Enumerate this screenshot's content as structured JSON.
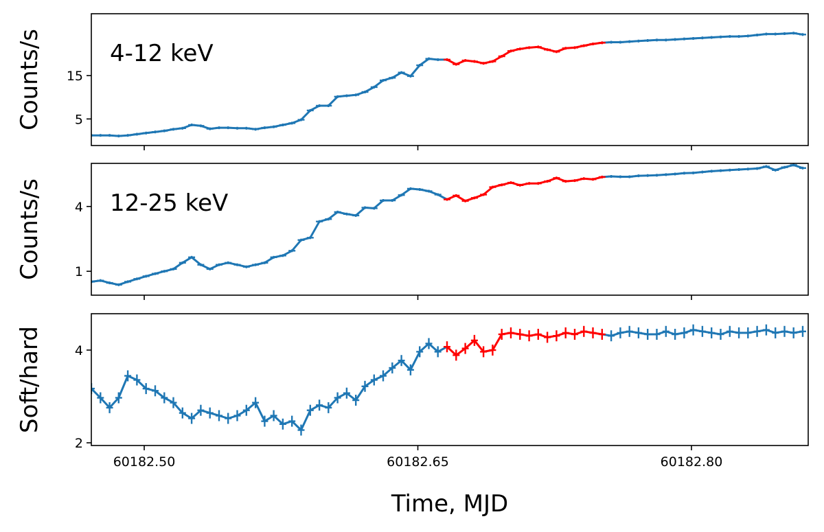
{
  "chart_data": {
    "type": "line",
    "colors": {
      "normal": "#1f77b4",
      "highlight": "#ff0000"
    },
    "highlight_range": [
      60182.665,
      60182.755
    ],
    "x_axis": {
      "label": "Time, MJD",
      "range": [
        60182.471,
        60182.864
      ],
      "ticks": [
        60182.5,
        60182.65,
        60182.8
      ],
      "tick_labels": [
        "60182.50",
        "60182.65",
        "60182.80"
      ]
    },
    "x": [
      60182.471,
      60182.476,
      60182.481,
      60182.486,
      60182.491,
      60182.496,
      60182.501,
      60182.506,
      60182.511,
      60182.516,
      60182.521,
      60182.526,
      60182.531,
      60182.536,
      60182.541,
      60182.546,
      60182.551,
      60182.556,
      60182.561,
      60182.566,
      60182.571,
      60182.576,
      60182.581,
      60182.586,
      60182.591,
      60182.596,
      60182.601,
      60182.606,
      60182.611,
      60182.616,
      60182.621,
      60182.626,
      60182.631,
      60182.636,
      60182.641,
      60182.646,
      60182.651,
      60182.656,
      60182.661,
      60182.666,
      60182.671,
      60182.676,
      60182.681,
      60182.686,
      60182.691,
      60182.696,
      60182.701,
      60182.706,
      60182.711,
      60182.716,
      60182.721,
      60182.726,
      60182.731,
      60182.736,
      60182.741,
      60182.746,
      60182.751,
      60182.756,
      60182.761,
      60182.766,
      60182.771,
      60182.776,
      60182.781,
      60182.786,
      60182.791,
      60182.796,
      60182.801,
      60182.806,
      60182.811,
      60182.816,
      60182.821,
      60182.826,
      60182.831,
      60182.836,
      60182.841,
      60182.846,
      60182.851,
      60182.856,
      60182.861
    ],
    "panels": [
      {
        "id": "soft",
        "label": "4-12 keV",
        "ylabel": "Counts/s",
        "yscale": "log",
        "ylim": [
          2.55,
          72
        ],
        "yticks": [
          5,
          15
        ],
        "ytick_labels": [
          "5",
          "15"
        ],
        "values": [
          3.3,
          3.3,
          3.3,
          3.25,
          3.3,
          3.4,
          3.5,
          3.6,
          3.7,
          3.85,
          3.95,
          4.3,
          4.2,
          3.9,
          4.0,
          4.0,
          3.95,
          3.95,
          3.85,
          4.0,
          4.1,
          4.3,
          4.5,
          4.9,
          6.2,
          7.0,
          7.0,
          8.8,
          9.0,
          9.2,
          9.9,
          11.2,
          13.3,
          14.2,
          16.2,
          14.8,
          19.5,
          23.0,
          22.5,
          22.5,
          20.0,
          22.0,
          21.5,
          20.5,
          21.5,
          24.5,
          28.0,
          29.5,
          30.5,
          31.0,
          29.0,
          27.5,
          30.0,
          30.5,
          32.0,
          33.5,
          34.5,
          35.0,
          35.0,
          35.5,
          36.0,
          36.5,
          37.0,
          37.0,
          37.5,
          38.0,
          38.5,
          39.0,
          39.5,
          40.0,
          40.5,
          40.5,
          41.0,
          42.0,
          43.0,
          43.0,
          43.5,
          44.0,
          42.5
        ]
      },
      {
        "id": "hard",
        "label": "12-25 keV",
        "ylabel": "Counts/s",
        "yscale": "log",
        "ylim": [
          0.6,
          10.05
        ],
        "yticks": [
          1,
          4
        ],
        "ytick_labels": [
          "1",
          "4"
        ],
        "values": [
          0.8,
          0.82,
          0.78,
          0.75,
          0.8,
          0.85,
          0.9,
          0.95,
          1.0,
          1.05,
          1.2,
          1.35,
          1.15,
          1.05,
          1.15,
          1.2,
          1.15,
          1.1,
          1.15,
          1.2,
          1.35,
          1.4,
          1.55,
          1.95,
          2.05,
          2.9,
          3.05,
          3.55,
          3.4,
          3.3,
          3.9,
          3.85,
          4.55,
          4.55,
          5.1,
          5.85,
          5.75,
          5.55,
          5.15,
          4.65,
          5.05,
          4.5,
          4.8,
          5.15,
          6.05,
          6.35,
          6.65,
          6.3,
          6.55,
          6.55,
          6.85,
          7.35,
          6.85,
          6.95,
          7.25,
          7.15,
          7.5,
          7.6,
          7.55,
          7.55,
          7.7,
          7.75,
          7.8,
          7.9,
          8.0,
          8.15,
          8.2,
          8.35,
          8.5,
          8.6,
          8.7,
          8.8,
          8.9,
          9.0,
          9.4,
          8.7,
          9.25,
          9.7,
          9.1
        ]
      },
      {
        "id": "ratio",
        "label": "",
        "ylabel": "Soft/hard",
        "yscale": "log",
        "ylim": [
          1.96,
          5.25
        ],
        "yticks": [
          2,
          4
        ],
        "ytick_labels": [
          "2",
          "4"
        ],
        "values": [
          3.0,
          2.8,
          2.6,
          2.8,
          3.3,
          3.2,
          3.0,
          2.95,
          2.8,
          2.7,
          2.5,
          2.4,
          2.55,
          2.5,
          2.45,
          2.4,
          2.45,
          2.55,
          2.7,
          2.35,
          2.45,
          2.3,
          2.35,
          2.2,
          2.55,
          2.65,
          2.6,
          2.8,
          2.9,
          2.75,
          3.05,
          3.2,
          3.3,
          3.5,
          3.7,
          3.45,
          3.95,
          4.2,
          3.95,
          4.1,
          3.85,
          4.05,
          4.3,
          3.95,
          4.0,
          4.5,
          4.55,
          4.5,
          4.45,
          4.5,
          4.4,
          4.45,
          4.55,
          4.5,
          4.6,
          4.55,
          4.5,
          4.45,
          4.55,
          4.6,
          4.55,
          4.5,
          4.5,
          4.6,
          4.5,
          4.55,
          4.65,
          4.6,
          4.55,
          4.5,
          4.6,
          4.55,
          4.55,
          4.6,
          4.65,
          4.55,
          4.6,
          4.55,
          4.6
        ]
      }
    ]
  }
}
